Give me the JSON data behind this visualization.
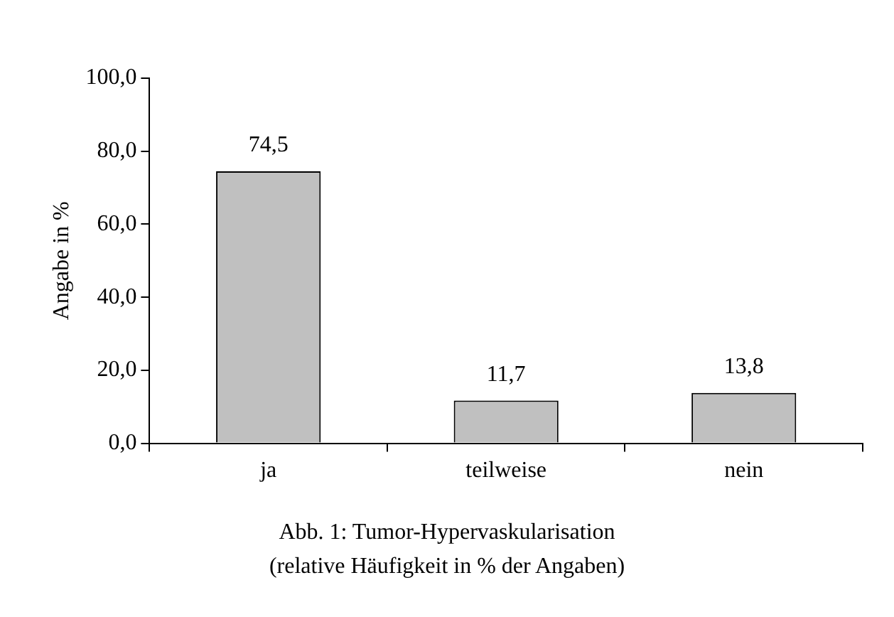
{
  "chart_data": {
    "type": "bar",
    "ylabel": "Angabe in %",
    "categories": [
      "ja",
      "teilweise",
      "nein"
    ],
    "values": [
      74.5,
      11.7,
      13.8
    ],
    "value_labels": [
      "74,5",
      "11,7",
      "13,8"
    ],
    "color": "#c0c0c0",
    "ylim": [
      0,
      100
    ],
    "yticks": [
      {
        "value": 0,
        "label": "0,0"
      },
      {
        "value": 20,
        "label": "20,0"
      },
      {
        "value": 40,
        "label": "40,0"
      },
      {
        "value": 60,
        "label": "60,0"
      },
      {
        "value": 80,
        "label": "80,0"
      },
      {
        "value": 100,
        "label": "100,0"
      }
    ],
    "grid": false,
    "legend": false,
    "annotations": [
      "Abb. 1: Tumor-Hypervaskularisation",
      "(relative Häufigkeit in % der Angaben)"
    ]
  }
}
